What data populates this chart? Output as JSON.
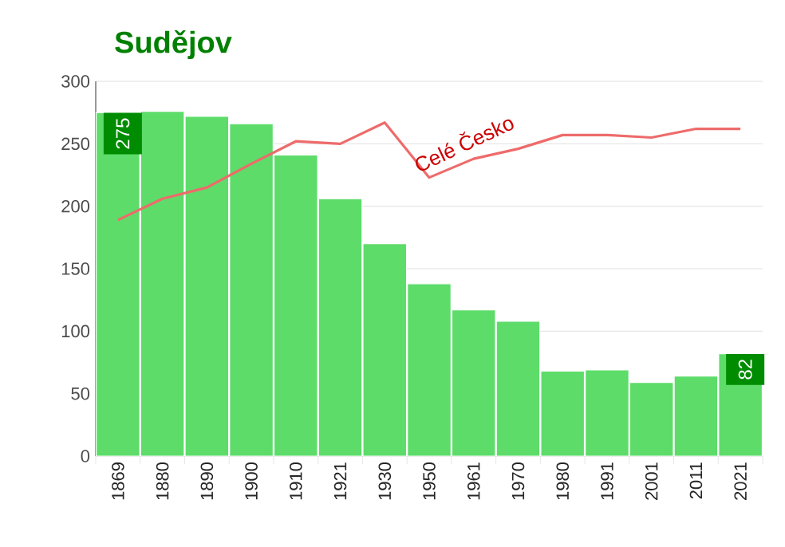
{
  "chart_data": {
    "type": "bar",
    "title": "Sudějov",
    "categories": [
      "1869",
      "1880",
      "1890",
      "1900",
      "1910",
      "1921",
      "1930",
      "1950",
      "1961",
      "1970",
      "1980",
      "1991",
      "2001",
      "2011",
      "2021"
    ],
    "series": [
      {
        "color": "#5ddc6a",
        "values": [
          275,
          276,
          272,
          266,
          241,
          206,
          170,
          138,
          117,
          108,
          68,
          69,
          59,
          64,
          82
        ],
        "value_labels": [
          "275",
          null,
          null,
          null,
          null,
          null,
          null,
          null,
          null,
          null,
          null,
          null,
          null,
          null,
          "82"
        ]
      },
      {
        "type": "line",
        "name": "Celé Česko",
        "color": "#ee6b6b",
        "marker": "none",
        "values": [
          189,
          206,
          215,
          234,
          252,
          250,
          267,
          223,
          238,
          246,
          257,
          257,
          255,
          262,
          262
        ]
      }
    ],
    "ylim": [
      0,
      300
    ],
    "yticks": [
      0,
      50,
      100,
      150,
      200,
      250,
      300
    ],
    "grid": "y"
  }
}
